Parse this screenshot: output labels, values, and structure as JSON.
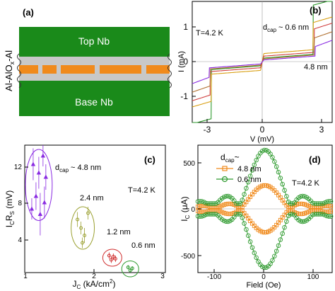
{
  "panel_a": {
    "label": "(a)",
    "top_layer": "Top Nb",
    "bottom_layer": "Base Nb",
    "barrier_label": "Al-AlO",
    "barrier_sub": "x",
    "barrier_suffix": "-Al",
    "colors": {
      "nb": "#1a8a1a",
      "al": "#c8c8c8",
      "oxide": "#f08a1c"
    }
  },
  "panel_b": {
    "label": "(b)",
    "temperature": "T=4.2 K",
    "dcap_label_main": "d",
    "dcap_label_sub": "cap",
    "dcap_value": "~ 0.6 nm",
    "thickness_label": "4.8 nm",
    "ylabel": "I (mA)",
    "xlabel": "V (mV)",
    "xticks": [
      "-3",
      "0",
      "3"
    ],
    "yticks": [
      "1",
      "0",
      "-1"
    ]
  },
  "panel_c": {
    "label": "(c)",
    "temperature": "T=4.2 K",
    "dcap_main": "d",
    "dcap_sub": "cap",
    "dcap_value": "~ 4.8 nm",
    "group_labels": [
      "2.4 nm",
      "1.2 nm",
      "0.6 nm"
    ],
    "ylabel_main": "I",
    "ylabel_sub1": "C",
    "ylabel_mid": "R",
    "ylabel_sub2": "S",
    "ylabel_unit": " (mV)",
    "xlabel_main": "J",
    "xlabel_sub": "C",
    "xlabel_unit": " (kA/cm",
    "xlabel_sup": "2",
    "xlabel_close": ")",
    "xticks": [
      "1",
      "2",
      "3"
    ],
    "yticks": [
      "12",
      "8",
      "4"
    ]
  },
  "panel_d": {
    "label": "(d)",
    "temperature": "T=4.2 K",
    "dcap_main": "d",
    "dcap_sub": "cap",
    "dcap_tilde": "~",
    "legend": [
      "4.8 nm",
      "0.6 nm"
    ],
    "ylabel_main": "I",
    "ylabel_sub": "C",
    "ylabel_unit": " (μA)",
    "xlabel": "Field (Oe)",
    "xticks": [
      "-100",
      "0",
      "100"
    ],
    "yticks": [
      "500",
      "0",
      "-500"
    ]
  },
  "chart_data": [
    {
      "panel": "b",
      "type": "line",
      "xlabel": "V (mV)",
      "ylabel": "I (mA)",
      "xlim": [
        -3.5,
        3.5
      ],
      "ylim": [
        -1.6,
        1.6
      ],
      "series": [
        {
          "name": "0.6 nm",
          "color": "#2e9a2e",
          "gap": 2.55,
          "ic": 0.1,
          "jump": 1.3
        },
        {
          "color": "#d9a015",
          "gap": 2.55,
          "ic": 0.22,
          "jump": 0.72
        },
        {
          "color": "#d04040",
          "gap": 2.6,
          "ic": 0.15,
          "jump": 0.62
        },
        {
          "color": "#b07030",
          "gap": 2.6,
          "ic": 0.08,
          "jump": 0.45
        },
        {
          "name": "4.8 nm",
          "color": "#8a2be2",
          "gap": 2.65,
          "ic": 0.05,
          "jump": 0.25
        }
      ]
    },
    {
      "panel": "c",
      "type": "scatter",
      "xlabel": "JC (kA/cm2)",
      "ylabel": "ICRS (mV)",
      "xlim": [
        1,
        3
      ],
      "ylim": [
        2,
        14
      ],
      "series": [
        {
          "name": "4.8 nm",
          "color": "#8a2be2",
          "points": [
            [
              1.12,
              12.2,
              1.5
            ],
            [
              1.2,
              11.4,
              1.5
            ],
            [
              1.26,
              13.0,
              1.0
            ],
            [
              1.3,
              11.0,
              1.2
            ],
            [
              1.16,
              9.2,
              1.3
            ],
            [
              1.1,
              8.0,
              1.0
            ],
            [
              1.22,
              7.5,
              2.0
            ],
            [
              1.28,
              8.6,
              1.5
            ]
          ]
        },
        {
          "name": "2.4 nm",
          "color": "#9aa030",
          "points": [
            [
              1.75,
              7.0,
              0.7
            ],
            [
              1.8,
              6.2,
              0.6
            ],
            [
              1.85,
              5.5,
              0.7
            ],
            [
              1.9,
              7.6,
              0.6
            ],
            [
              1.82,
              4.8,
              0.5
            ]
          ]
        },
        {
          "name": "1.2 nm",
          "color": "#d03030",
          "points": [
            [
              2.2,
              3.6,
              0.3
            ],
            [
              2.23,
              3.2,
              0.3
            ],
            [
              2.26,
              3.5,
              0.3
            ],
            [
              2.29,
              3.3,
              0.3
            ]
          ]
        },
        {
          "name": "0.6 nm",
          "color": "#2e9a2e",
          "points": [
            [
              2.47,
              2.5,
              0.2
            ],
            [
              2.5,
              2.2,
              0.2
            ],
            [
              2.53,
              2.4,
              0.2
            ]
          ]
        }
      ]
    },
    {
      "panel": "d",
      "type": "line",
      "xlabel": "Field (Oe)",
      "ylabel": "IC (μA)",
      "xlim": [
        -135,
        135
      ],
      "ylim": [
        -650,
        650
      ],
      "series": [
        {
          "name": "4.8 nm",
          "color": "#f08a1c",
          "ic0": 240,
          "period": 50
        },
        {
          "name": "0.6 nm",
          "color": "#2e9a2e",
          "ic0": 600,
          "period": 53
        }
      ]
    }
  ]
}
